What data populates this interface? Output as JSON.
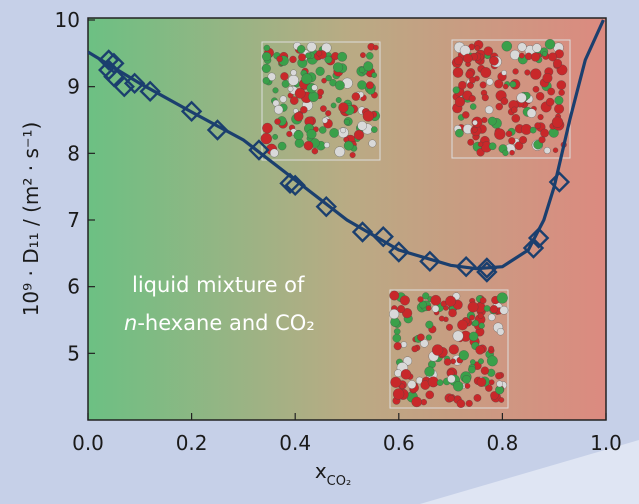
{
  "chart_data": {
    "type": "scatter",
    "y_label": "10⁹ · D₁₁ / (m² · s⁻¹)",
    "x_label": "x",
    "x_label_sub": "CO₂",
    "annotation_line1": "liquid mixture of",
    "annotation_italic": "n",
    "annotation_line2": "-hexane and CO₂",
    "xlim": [
      0,
      1
    ],
    "ylim": [
      4,
      10
    ],
    "xticks": [
      {
        "value": 0,
        "label": "0.0"
      },
      {
        "value": 0.2,
        "label": "0.2"
      },
      {
        "value": 0.4,
        "label": "0.4"
      },
      {
        "value": 0.6,
        "label": "0.6"
      },
      {
        "value": 0.8,
        "label": "0.8"
      },
      {
        "value": 1,
        "label": "1.0"
      }
    ],
    "yticks": [
      5,
      6,
      7,
      8,
      9,
      10
    ],
    "series": [
      {
        "color": "#1b3f6e",
        "marker": "diamond",
        "x": [
          0.04,
          0.05,
          0.04,
          0.05,
          0.07,
          0.09,
          0.12,
          0.2,
          0.25,
          0.33,
          0.39,
          0.4,
          0.46,
          0.53,
          0.57,
          0.6,
          0.66,
          0.73,
          0.77,
          0.77,
          0.86,
          0.87,
          0.91
        ],
        "values": [
          9.4,
          9.35,
          9.25,
          9.15,
          9.0,
          9.05,
          8.93,
          8.63,
          8.35,
          8.05,
          7.55,
          7.52,
          7.2,
          6.82,
          6.75,
          6.52,
          6.38,
          6.3,
          6.28,
          6.22,
          6.58,
          6.73,
          7.57
        ]
      },
      {
        "color": "#1b3f6e",
        "marker": "line",
        "x": [
          0.0,
          0.1,
          0.2,
          0.3,
          0.4,
          0.5,
          0.6,
          0.7,
          0.75,
          0.8,
          0.85,
          0.88,
          0.9,
          0.93,
          0.96,
          0.995
        ],
        "values": [
          9.52,
          9.05,
          8.62,
          8.2,
          7.6,
          7.0,
          6.55,
          6.32,
          6.27,
          6.3,
          6.55,
          7.0,
          7.5,
          8.5,
          9.4,
          10.0
        ]
      }
    ]
  }
}
